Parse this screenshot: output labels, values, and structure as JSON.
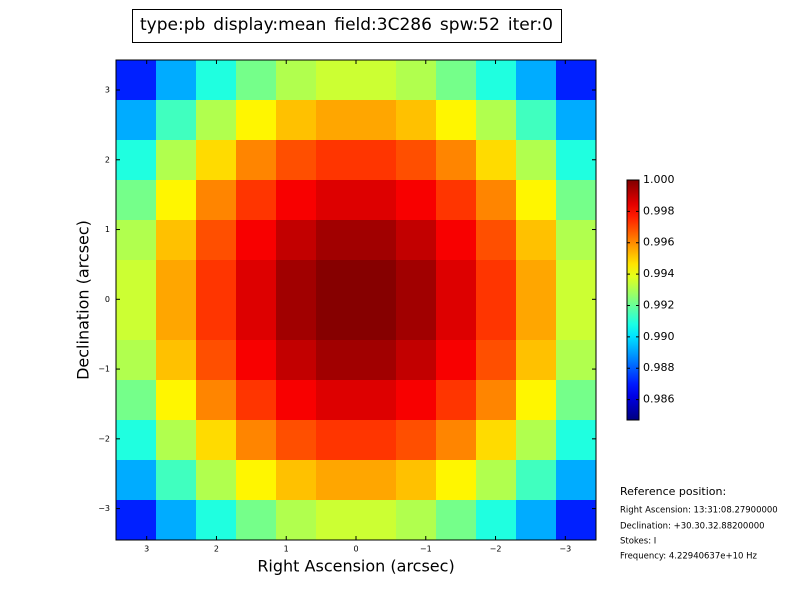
{
  "chart_data": {
    "type": "heatmap",
    "title_parts": [
      {
        "text": "type:pb",
        "color": "#000000"
      },
      {
        "text": "display:mean",
        "color": "#ff0000"
      },
      {
        "text": "field:3C286",
        "color": "#000000"
      },
      {
        "text": "spw:52",
        "color": "#000000"
      },
      {
        "text": "iter:0",
        "color": "#000000"
      }
    ],
    "x_label": "Right Ascension (arcsec)",
    "y_label": "Declination (arcsec)",
    "xlim": [
      3.44,
      -3.44
    ],
    "ylim": [
      -3.45,
      3.43
    ],
    "xticks": [
      3,
      2,
      1,
      0,
      {
        "value": -1,
        "label": "−1"
      },
      {
        "value": -2,
        "label": "−2"
      },
      {
        "value": -3,
        "label": "−3"
      }
    ],
    "yticks": [
      {
        "value": -3,
        "label": "−3"
      },
      {
        "value": -2,
        "label": "−2"
      },
      {
        "value": -1,
        "label": "−1"
      },
      0,
      1,
      2,
      3
    ],
    "colormap": "jet",
    "clim": [
      0.9847,
      1.0
    ],
    "colorbar_ticks": [
      0.986,
      0.988,
      {
        "value": 0.99,
        "label": "0.990"
      },
      0.992,
      0.994,
      0.996,
      0.998,
      {
        "value": 1.0,
        "label": "1.000"
      }
    ],
    "values": [
      [
        0.9871,
        0.9892,
        0.9909,
        0.9922,
        0.9931,
        0.9935,
        0.9935,
        0.9931,
        0.9922,
        0.9909,
        0.9892,
        0.9871
      ],
      [
        0.9892,
        0.9914,
        0.9931,
        0.9944,
        0.9952,
        0.9956,
        0.9956,
        0.9952,
        0.9944,
        0.9931,
        0.9914,
        0.9892
      ],
      [
        0.9909,
        0.9931,
        0.9948,
        0.9961,
        0.9969,
        0.9973,
        0.9973,
        0.9969,
        0.9961,
        0.9948,
        0.9931,
        0.9909
      ],
      [
        0.9922,
        0.9944,
        0.9961,
        0.9973,
        0.9982,
        0.9986,
        0.9986,
        0.9982,
        0.9973,
        0.9961,
        0.9944,
        0.9922
      ],
      [
        0.9931,
        0.9952,
        0.9969,
        0.9982,
        0.999,
        0.9995,
        0.9995,
        0.999,
        0.9982,
        0.9969,
        0.9952,
        0.9931
      ],
      [
        0.9935,
        0.9956,
        0.9973,
        0.9986,
        0.9995,
        0.9999,
        0.9999,
        0.9995,
        0.9986,
        0.9973,
        0.9956,
        0.9935
      ],
      [
        0.9935,
        0.9956,
        0.9973,
        0.9986,
        0.9995,
        0.9999,
        0.9999,
        0.9995,
        0.9986,
        0.9973,
        0.9956,
        0.9935
      ],
      [
        0.9931,
        0.9952,
        0.9969,
        0.9982,
        0.999,
        0.9995,
        0.9995,
        0.999,
        0.9982,
        0.9969,
        0.9952,
        0.9931
      ],
      [
        0.9922,
        0.9944,
        0.9961,
        0.9973,
        0.9982,
        0.9986,
        0.9986,
        0.9982,
        0.9973,
        0.9961,
        0.9944,
        0.9922
      ],
      [
        0.9909,
        0.9931,
        0.9948,
        0.9961,
        0.9969,
        0.9973,
        0.9973,
        0.9969,
        0.9961,
        0.9948,
        0.9931,
        0.9909
      ],
      [
        0.9892,
        0.9914,
        0.9931,
        0.9944,
        0.9952,
        0.9956,
        0.9956,
        0.9952,
        0.9944,
        0.9931,
        0.9914,
        0.9892
      ],
      [
        0.9871,
        0.9892,
        0.9909,
        0.9922,
        0.9931,
        0.9935,
        0.9935,
        0.9931,
        0.9922,
        0.9909,
        0.9892,
        0.9871
      ]
    ],
    "info_title": "Reference position:",
    "info_lines": [
      "Right Ascension: 13:31:08.27900000",
      "Declination: +30.30.32.88200000",
      "Stokes: I",
      "Frequency: 4.22940637e+10 Hz"
    ]
  }
}
